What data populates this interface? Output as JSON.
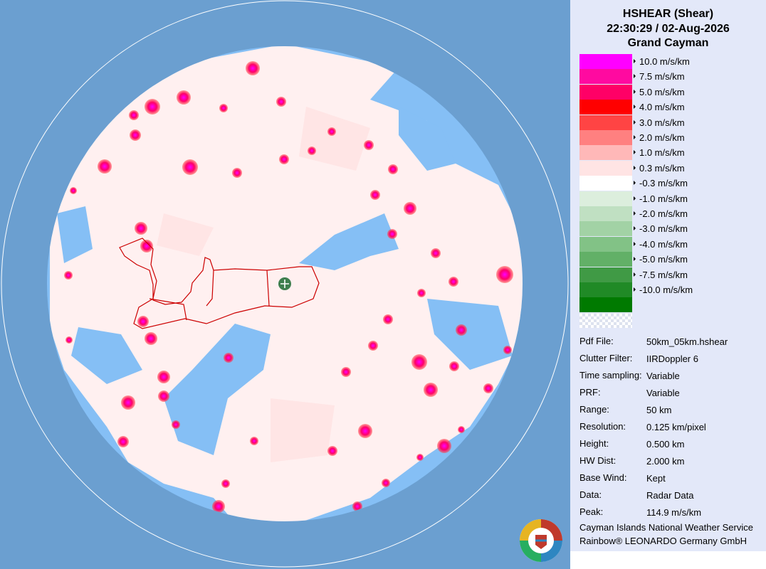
{
  "header": {
    "product": "HSHEAR (Shear)",
    "datetime": "22:30:29 / 02-Aug-2026",
    "site": "Grand Cayman"
  },
  "legend": [
    {
      "label": "10.0 m/s/km",
      "color": "#ff00ff"
    },
    {
      "label": "7.5 m/s/km",
      "color": "#ff0aa0"
    },
    {
      "label": "5.0 m/s/km",
      "color": "#ff0066"
    },
    {
      "label": "4.0 m/s/km",
      "color": "#ff0000"
    },
    {
      "label": "3.0 m/s/km",
      "color": "#ff4444"
    },
    {
      "label": "2.0 m/s/km",
      "color": "#ff8080"
    },
    {
      "label": "1.0 m/s/km",
      "color": "#ffb8b8"
    },
    {
      "label": "0.3 m/s/km",
      "color": "#ffe4e4"
    },
    {
      "label": "-0.3 m/s/km",
      "color": "#ffffff"
    },
    {
      "label": "-1.0 m/s/km",
      "color": "#dceedd"
    },
    {
      "label": "-2.0 m/s/km",
      "color": "#c0e0c2"
    },
    {
      "label": "-3.0 m/s/km",
      "color": "#a2d2a5"
    },
    {
      "label": "-4.0 m/s/km",
      "color": "#82c286"
    },
    {
      "label": "-5.0 m/s/km",
      "color": "#62b067"
    },
    {
      "label": "-7.5 m/s/km",
      "color": "#409a45"
    },
    {
      "label": "-10.0 m/s/km",
      "color": "#208a26"
    },
    {
      "label": "",
      "color": "#007a00"
    }
  ],
  "info": [
    {
      "key": "Pdf File:",
      "value": "50km_05km.hshear"
    },
    {
      "key": "Clutter Filter:",
      "value": "IIRDoppler 6"
    },
    {
      "key": "Time sampling:",
      "value": "Variable"
    },
    {
      "key": "PRF:",
      "value": "Variable"
    },
    {
      "key": "Range:",
      "value": "50 km"
    },
    {
      "key": "Resolution:",
      "value": "0.125 km/pixel"
    },
    {
      "key": "Height:",
      "value": "0.500 km"
    },
    {
      "key": "HW Dist:",
      "value": "2.000 km"
    },
    {
      "key": "Base Wind:",
      "value": "Kept"
    },
    {
      "key": "Data:",
      "value": "Radar Data"
    },
    {
      "key": "Peak:",
      "value": "114.9 m/s/km"
    }
  ],
  "credits": {
    "line1": "Cayman Islands National Weather Service",
    "line2": "Rainbow® LEONARDO Germany GmbH"
  },
  "colors": {
    "ocean_outer": "#6b9fd0",
    "radar_water": "#85bff5",
    "coastline": "#cc0000",
    "radar_site": "#3e7e4e",
    "panel_bg": "#e3e8f9"
  }
}
